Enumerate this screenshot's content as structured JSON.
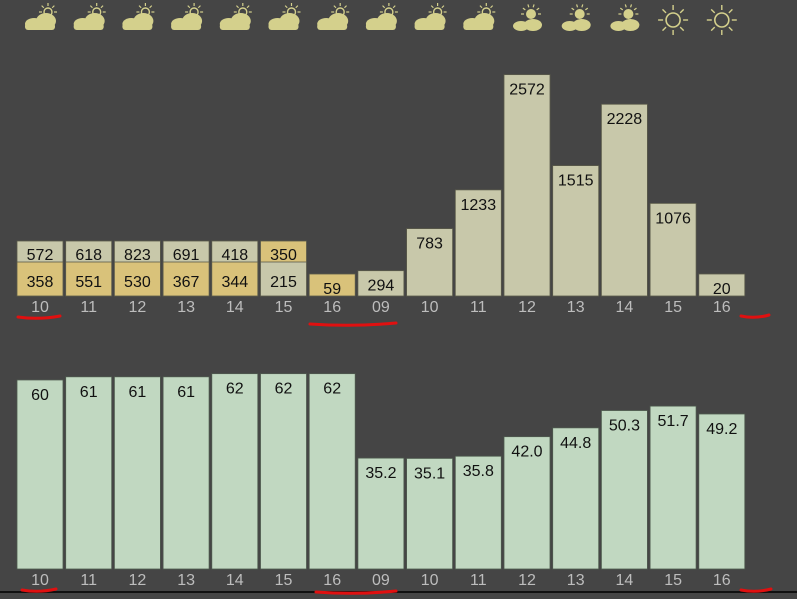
{
  "colors": {
    "background": "#454545",
    "bar_a": "#c8c8aa",
    "bar_b": "#d9c27a",
    "bar_lower": "#c1d8c1",
    "bar_border": "#5a5a4a",
    "value_text": "#111111",
    "tick_text": "#bdbdbd",
    "icon": "#d4d08c",
    "annotation": "#e01010"
  },
  "weather_icons": [
    "sun-cloud-icon",
    "sun-cloud-icon",
    "sun-cloud-icon",
    "sun-cloud-icon",
    "sun-cloud-icon",
    "sun-cloud-icon",
    "sun-cloud-icon",
    "sun-cloud-icon",
    "sun-cloud-icon",
    "sun-cloud-icon",
    "partly-sunny-icon",
    "partly-sunny-icon",
    "partly-sunny-icon",
    "sun-icon",
    "sun-icon"
  ],
  "highlighted_ticks": [
    0,
    6,
    7,
    14
  ],
  "chart_data": [
    {
      "type": "bar",
      "categories": [
        "10",
        "11",
        "12",
        "13",
        "14",
        "15",
        "16",
        "09",
        "10",
        "11",
        "12",
        "13",
        "14",
        "15",
        "16"
      ],
      "series": [
        {
          "values": [
            572,
            618,
            823,
            691,
            418,
            215,
            null,
            294,
            783,
            1233,
            2572,
            1515,
            2228,
            1076,
            20
          ]
        },
        {
          "values": [
            358,
            551,
            530,
            367,
            344,
            350,
            59,
            null,
            null,
            null,
            null,
            null,
            null,
            null,
            null
          ]
        }
      ],
      "title": "",
      "xlabel": "",
      "ylabel": "",
      "ylim": [
        0,
        2800
      ],
      "grid": false
    },
    {
      "type": "bar",
      "categories": [
        "10",
        "11",
        "12",
        "13",
        "14",
        "15",
        "16",
        "09",
        "10",
        "11",
        "12",
        "13",
        "14",
        "15",
        "16"
      ],
      "values": [
        "60",
        "61",
        "61",
        "61",
        "62",
        "62",
        "62",
        "35.2",
        "35.1",
        "35.8",
        "42.0",
        "44.8",
        "50.3",
        "51.7",
        "49.2"
      ],
      "title": "",
      "xlabel": "",
      "ylabel": "",
      "ylim": [
        0,
        73
      ],
      "grid": false
    }
  ]
}
